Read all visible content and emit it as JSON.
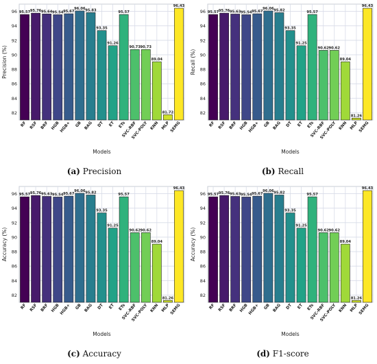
{
  "chart_data": [
    {
      "type": "bar",
      "caption_letter": "(a)",
      "caption_text": "Precision",
      "xlabel": "Models",
      "ylabel": "Precision (%)",
      "ylim": [
        81,
        97
      ],
      "yticks": [
        82,
        84,
        86,
        88,
        90,
        92,
        94,
        96
      ],
      "grid": true,
      "categories": [
        "RF",
        "RSF",
        "BRF",
        "HGB",
        "HGB+",
        "GB",
        "BAG",
        "DT",
        "ET",
        "ETs",
        "SVC-RBF",
        "SVC-POLY",
        "KNN",
        "MLP",
        "SEMG"
      ],
      "values": [
        95.57,
        95.76,
        95.64,
        95.54,
        95.67,
        96.06,
        95.83,
        93.35,
        91.26,
        95.57,
        90.73,
        90.73,
        89.04,
        81.72,
        96.43
      ],
      "value_labels": [
        "95.57",
        "95.76",
        "95.64",
        "95.54",
        "95.67",
        "96.06",
        "95.83",
        "93.35",
        "91.26",
        "95.57",
        "90.73",
        "90.73",
        "89.04",
        "81.72",
        "96.43"
      ]
    },
    {
      "type": "bar",
      "caption_letter": "(b)",
      "caption_text": "Recall",
      "xlabel": "Models",
      "ylabel": "Recall (%)",
      "ylim": [
        81,
        97
      ],
      "yticks": [
        82,
        84,
        86,
        88,
        90,
        92,
        94,
        96
      ],
      "grid": true,
      "categories": [
        "RF",
        "RSF",
        "BRF",
        "HGB",
        "HGB+",
        "GB",
        "BAG",
        "DT",
        "ET",
        "ETs",
        "SVC-RBF",
        "SVC-POLY",
        "KNN",
        "MLP",
        "SEMG"
      ],
      "values": [
        95.57,
        95.76,
        95.63,
        95.54,
        95.67,
        96.06,
        95.82,
        93.35,
        91.25,
        95.57,
        90.62,
        90.62,
        89.04,
        81.26,
        96.43
      ],
      "value_labels": [
        "95.57",
        "95.76",
        "95.63",
        "95.54",
        "95.67",
        "96.06",
        "95.82",
        "93.35",
        "91.25",
        "95.57",
        "90.62",
        "90.62",
        "89.04",
        "81.26",
        "96.43"
      ]
    },
    {
      "type": "bar",
      "caption_letter": "(c)",
      "caption_text": "Accuracy",
      "xlabel": "Models",
      "ylabel": "Accuracy (%)",
      "ylim": [
        81,
        97
      ],
      "yticks": [
        82,
        84,
        86,
        88,
        90,
        92,
        94,
        96
      ],
      "grid": true,
      "categories": [
        "RF",
        "RSF",
        "BRF",
        "HGB",
        "HGB+",
        "GB",
        "BAG",
        "DT",
        "ET",
        "ETs",
        "SVC-RBF",
        "SVC-POLY",
        "KNN",
        "MLP",
        "SEMG"
      ],
      "values": [
        95.57,
        95.76,
        95.63,
        95.54,
        95.67,
        96.06,
        95.82,
        93.35,
        91.25,
        95.57,
        90.62,
        90.62,
        89.04,
        81.26,
        96.43
      ],
      "value_labels": [
        "95.57",
        "95.76",
        "95.63",
        "95.54",
        "95.67",
        "96.06",
        "95.82",
        "93.35",
        "91.25",
        "95.57",
        "90.62",
        "90.62",
        "89.04",
        "81.26",
        "96.43"
      ]
    },
    {
      "type": "bar",
      "caption_letter": "(d)",
      "caption_text": "F1-score",
      "xlabel": "Models",
      "ylabel": "Accuracy (%)",
      "ylim": [
        81,
        97
      ],
      "yticks": [
        82,
        84,
        86,
        88,
        90,
        92,
        94,
        96
      ],
      "grid": true,
      "categories": [
        "RF",
        "RSF",
        "BRF",
        "HGB",
        "HGB+",
        "GB",
        "BAG",
        "DT",
        "ET",
        "ETs",
        "SVC-RBF",
        "SVC-POLY",
        "KNN",
        "MLP",
        "SEMG"
      ],
      "values": [
        95.57,
        95.76,
        95.63,
        95.54,
        95.67,
        96.06,
        95.82,
        93.35,
        91.25,
        95.57,
        90.62,
        90.62,
        89.04,
        81.26,
        96.43
      ],
      "value_labels": [
        "95.57",
        "95.76",
        "95.63",
        "95.54",
        "95.67",
        "96.06",
        "95.82",
        "93.35",
        "91.25",
        "95.57",
        "90.62",
        "90.62",
        "89.04",
        "81.26",
        "96.43"
      ]
    }
  ],
  "colors": {
    "palette": "viridis",
    "grid": "#d8dce8",
    "frame": "#c8ccd6",
    "bar_edge": "#222222",
    "text": "#222222"
  }
}
